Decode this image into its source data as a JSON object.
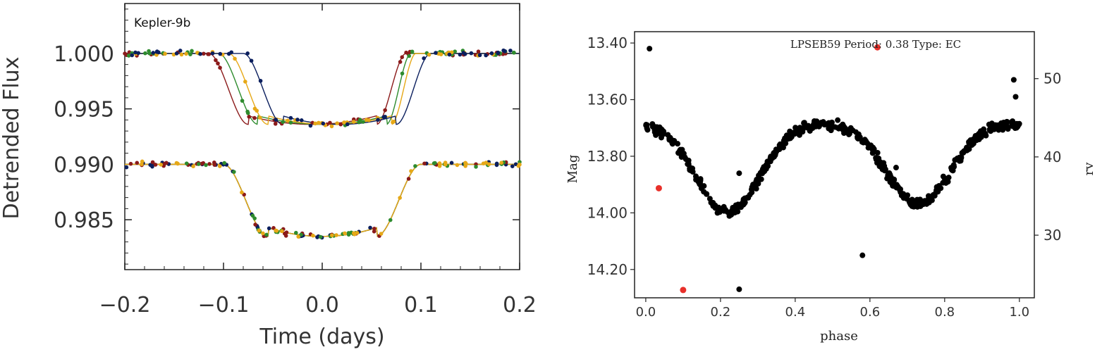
{
  "chart_data": [
    {
      "type": "scatter",
      "title": "",
      "annotation": "Kepler-9b",
      "xlabel": "Time (days)",
      "ylabel": "Detrended Flux",
      "xlim": [
        -0.2,
        0.2
      ],
      "ylim": [
        0.9805,
        1.0045
      ],
      "xticks": [
        -0.2,
        -0.1,
        0.0,
        0.1,
        0.2
      ],
      "xtick_labels": [
        "−0.2",
        "−0.1",
        "0.0",
        "0.1",
        "0.2"
      ],
      "yticks": [
        1.0,
        0.995,
        0.99,
        0.985
      ],
      "ytick_labels": [
        "1.000",
        "0.995",
        "0.990",
        "0.985"
      ],
      "grid": false,
      "legend": "none",
      "series_colors": [
        "#0b1f5e",
        "#8b1a1a",
        "#2e8b2e",
        "#e6a817"
      ],
      "upper_transits": [
        {
          "color": "#8b1a1a",
          "t1": -0.115,
          "t2": -0.075,
          "t3": 0.055,
          "t4": 0.085,
          "baseline": 1.0,
          "depth": 0.0064
        },
        {
          "color": "#2e8b2e",
          "t1": -0.105,
          "t2": -0.065,
          "t3": 0.065,
          "t4": 0.09,
          "baseline": 1.0,
          "depth": 0.0064
        },
        {
          "color": "#e6a817",
          "t1": -0.095,
          "t2": -0.055,
          "t3": 0.07,
          "t4": 0.095,
          "baseline": 1.0,
          "depth": 0.0064
        },
        {
          "color": "#0b1f5e",
          "t1": -0.08,
          "t2": -0.04,
          "t3": 0.075,
          "t4": 0.11,
          "baseline": 1.0,
          "depth": 0.0064
        }
      ],
      "lower_transit": {
        "t1": -0.1,
        "t2": -0.055,
        "t3": 0.055,
        "t4": 0.1,
        "baseline": 0.99,
        "depth": 0.0065
      }
    },
    {
      "type": "scatter",
      "title": "LPSEB59 Period: 0.38 Type: EC",
      "xlabel": "phase",
      "ylabel": "Mag",
      "y2label": "rv",
      "xlim": [
        -0.03,
        1.04
      ],
      "ylim_inverted": [
        13.36,
        14.3
      ],
      "y2lim": [
        22,
        56
      ],
      "xticks": [
        0.0,
        0.2,
        0.4,
        0.6,
        0.8,
        1.0
      ],
      "xtick_labels": [
        "0.0",
        "0.2",
        "0.4",
        "0.6",
        "0.8",
        "1.0"
      ],
      "yticks": [
        13.4,
        13.6,
        13.8,
        14.0,
        14.2
      ],
      "ytick_labels": [
        "13.40",
        "13.60",
        "13.80",
        "14.00",
        "14.20"
      ],
      "y2ticks": [
        30,
        40,
        50
      ],
      "y2tick_labels": [
        "30",
        "40",
        "50"
      ],
      "grid": false,
      "legend": "none",
      "mag_color": "#000000",
      "rv_color": "#e8302a",
      "mag_model": {
        "max": 13.68,
        "primary_min": 14.0,
        "secondary_min": 13.97,
        "primary_phase": 0.22,
        "secondary_phase": 0.73
      },
      "mag_outliers": [
        {
          "phase": 0.01,
          "mag": 13.42
        },
        {
          "phase": 0.25,
          "mag": 14.27
        },
        {
          "phase": 0.58,
          "mag": 14.15
        },
        {
          "phase": 0.25,
          "mag": 13.86
        },
        {
          "phase": 0.67,
          "mag": 13.84
        },
        {
          "phase": 0.985,
          "mag": 13.53
        },
        {
          "phase": 0.99,
          "mag": 13.59
        }
      ],
      "rv_points": [
        {
          "phase": 0.035,
          "rv": 36
        },
        {
          "phase": 0.1,
          "rv": 23
        },
        {
          "phase": 0.62,
          "rv": 54
        }
      ]
    }
  ]
}
